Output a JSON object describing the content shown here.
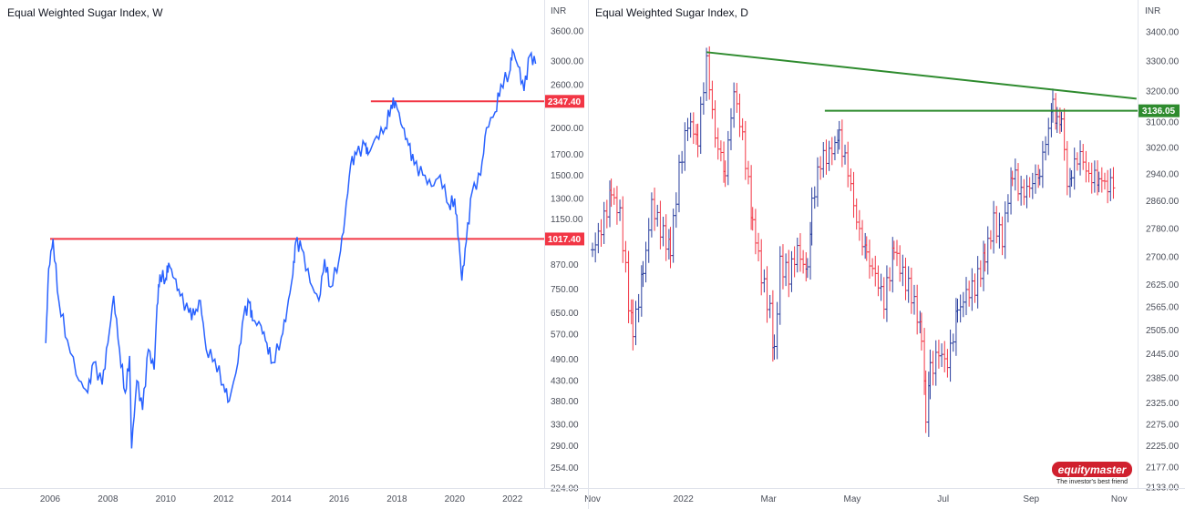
{
  "chart_data": [
    {
      "type": "line",
      "title": "Equal Weighted Sugar Index, W",
      "currency_label": "INR",
      "scale": "log",
      "series_color": "#2962ff",
      "x_ticks": [
        "2006",
        "2008",
        "2010",
        "2012",
        "2014",
        "2016",
        "2018",
        "2020",
        "2022"
      ],
      "y_ticks": [
        "3600.00",
        "3000.00",
        "2600.00",
        "2000.00",
        "1700.00",
        "1500.00",
        "1300.00",
        "1150.00",
        "870.00",
        "750.00",
        "650.00",
        "570.00",
        "490.00",
        "430.00",
        "380.00",
        "330.00",
        "290.00",
        "254.00",
        "224.00"
      ],
      "ylim": [
        224,
        3600
      ],
      "xlim": [
        2005.7,
        2023.1
      ],
      "series": [
        {
          "name": "Equal Weighted Sugar Index",
          "points": [
            [
              2005.85,
              540
            ],
            [
              2005.95,
              850
            ],
            [
              2006.1,
              1017
            ],
            [
              2006.3,
              700
            ],
            [
              2006.6,
              550
            ],
            [
              2007.0,
              430
            ],
            [
              2007.3,
              400
            ],
            [
              2007.5,
              480
            ],
            [
              2007.8,
              420
            ],
            [
              2008.0,
              540
            ],
            [
              2008.2,
              720
            ],
            [
              2008.4,
              520
            ],
            [
              2008.6,
              400
            ],
            [
              2008.75,
              500
            ],
            [
              2008.82,
              285
            ],
            [
              2009.0,
              430
            ],
            [
              2009.2,
              360
            ],
            [
              2009.4,
              520
            ],
            [
              2009.6,
              460
            ],
            [
              2009.7,
              680
            ],
            [
              2009.8,
              820
            ],
            [
              2010.0,
              800
            ],
            [
              2010.1,
              880
            ],
            [
              2010.3,
              800
            ],
            [
              2010.5,
              720
            ],
            [
              2010.8,
              650
            ],
            [
              2011.0,
              640
            ],
            [
              2011.2,
              700
            ],
            [
              2011.4,
              520
            ],
            [
              2011.7,
              490
            ],
            [
              2012.0,
              420
            ],
            [
              2012.2,
              380
            ],
            [
              2012.5,
              480
            ],
            [
              2012.7,
              640
            ],
            [
              2012.9,
              690
            ],
            [
              2013.0,
              620
            ],
            [
              2013.3,
              600
            ],
            [
              2013.5,
              540
            ],
            [
              2013.7,
              480
            ],
            [
              2014.0,
              560
            ],
            [
              2014.2,
              660
            ],
            [
              2014.4,
              820
            ],
            [
              2014.5,
              1000
            ],
            [
              2014.7,
              960
            ],
            [
              2015.0,
              780
            ],
            [
              2015.3,
              700
            ],
            [
              2015.5,
              900
            ],
            [
              2015.7,
              760
            ],
            [
              2016.0,
              900
            ],
            [
              2016.2,
              1150
            ],
            [
              2016.4,
              1600
            ],
            [
              2016.6,
              1700
            ],
            [
              2016.9,
              1800
            ],
            [
              2017.0,
              1700
            ],
            [
              2017.3,
              1900
            ],
            [
              2017.6,
              2000
            ],
            [
              2017.8,
              2300
            ],
            [
              2017.95,
              2347
            ],
            [
              2018.2,
              2000
            ],
            [
              2018.4,
              1800
            ],
            [
              2018.6,
              1600
            ],
            [
              2018.9,
              1500
            ],
            [
              2019.2,
              1400
            ],
            [
              2019.5,
              1500
            ],
            [
              2019.8,
              1250
            ],
            [
              2020.0,
              1300
            ],
            [
              2020.15,
              1000
            ],
            [
              2020.25,
              790
            ],
            [
              2020.4,
              1000
            ],
            [
              2020.6,
              1350
            ],
            [
              2020.9,
              1500
            ],
            [
              2021.1,
              2000
            ],
            [
              2021.4,
              2200
            ],
            [
              2021.6,
              2600
            ],
            [
              2021.9,
              2800
            ],
            [
              2022.0,
              3200
            ],
            [
              2022.2,
              2900
            ],
            [
              2022.4,
              2500
            ],
            [
              2022.6,
              3100
            ],
            [
              2022.8,
              2950
            ]
          ]
        }
      ],
      "annotations": [
        {
          "type": "hline",
          "value": 2347.4,
          "label": "2347.40",
          "from": 2017.1,
          "color": "#f23645"
        },
        {
          "type": "hline",
          "value": 1017.4,
          "label": "1017.40",
          "from": 2006.0,
          "color": "#f23645"
        }
      ]
    },
    {
      "type": "ohlc",
      "title": "Equal Weighted Sugar Index, D",
      "currency_label": "INR",
      "scale": "log",
      "up_color": "#2a3f9e",
      "down_color": "#f23645",
      "x_ticks": [
        {
          "label": "Nov",
          "day": 0
        },
        {
          "label": "2022",
          "day": 63
        },
        {
          "label": "Mar",
          "day": 122
        },
        {
          "label": "May",
          "day": 180
        },
        {
          "label": "Jul",
          "day": 243
        },
        {
          "label": "Sep",
          "day": 304
        },
        {
          "label": "Nov",
          "day": 365
        }
      ],
      "y_ticks": [
        "3400.00",
        "3300.00",
        "3200.00",
        "3100.00",
        "3020.00",
        "2940.00",
        "2860.00",
        "2780.00",
        "2700.00",
        "2625.00",
        "2565.00",
        "2505.00",
        "2445.00",
        "2385.00",
        "2325.00",
        "2275.00",
        "2225.00",
        "2177.00",
        "2133.00"
      ],
      "ylim": [
        2133,
        3400
      ],
      "x_unit": "days since 1 Nov 2021",
      "closes": [
        [
          0,
          2720
        ],
        [
          6,
          2780
        ],
        [
          13,
          2880
        ],
        [
          19,
          2820
        ],
        [
          25,
          2580
        ],
        [
          28,
          2500
        ],
        [
          35,
          2650
        ],
        [
          41,
          2850
        ],
        [
          47,
          2780
        ],
        [
          54,
          2720
        ],
        [
          60,
          2950
        ],
        [
          66,
          3100
        ],
        [
          73,
          3050
        ],
        [
          79,
          3300
        ],
        [
          85,
          3050
        ],
        [
          92,
          2950
        ],
        [
          98,
          3200
        ],
        [
          104,
          3050
        ],
        [
          111,
          2800
        ],
        [
          117,
          2650
        ],
        [
          123,
          2550
        ],
        [
          126,
          2450
        ],
        [
          130,
          2680
        ],
        [
          136,
          2650
        ],
        [
          142,
          2720
        ],
        [
          149,
          2650
        ],
        [
          152,
          2850
        ],
        [
          158,
          2980
        ],
        [
          164,
          3000
        ],
        [
          171,
          3050
        ],
        [
          177,
          2950
        ],
        [
          183,
          2800
        ],
        [
          190,
          2700
        ],
        [
          196,
          2650
        ],
        [
          202,
          2580
        ],
        [
          209,
          2720
        ],
        [
          215,
          2650
        ],
        [
          221,
          2600
        ],
        [
          228,
          2500
        ],
        [
          231,
          2280
        ],
        [
          234,
          2400
        ],
        [
          240,
          2450
        ],
        [
          246,
          2420
        ],
        [
          253,
          2550
        ],
        [
          259,
          2600
        ],
        [
          265,
          2620
        ],
        [
          272,
          2700
        ],
        [
          278,
          2800
        ],
        [
          284,
          2750
        ],
        [
          291,
          2950
        ],
        [
          297,
          2880
        ],
        [
          303,
          2900
        ],
        [
          310,
          2950
        ],
        [
          316,
          3080
        ],
        [
          319,
          3150
        ],
        [
          322,
          3100
        ],
        [
          325,
          3120
        ],
        [
          329,
          2900
        ],
        [
          332,
          2950
        ],
        [
          338,
          3000
        ],
        [
          344,
          2930
        ],
        [
          351,
          2930
        ],
        [
          357,
          2900
        ],
        [
          363,
          2930
        ]
      ],
      "annotations": [
        {
          "type": "trendline",
          "from": [
            79,
            3330
          ],
          "to": [
            377,
            3175
          ],
          "color": "#2e8b2e"
        },
        {
          "type": "hline",
          "value": 3136.05,
          "label": "3136.05",
          "from": 161,
          "color": "#2e8b2e"
        }
      ]
    }
  ],
  "brand": {
    "name": "equitymaster",
    "tagline": "The investor's best friend"
  }
}
